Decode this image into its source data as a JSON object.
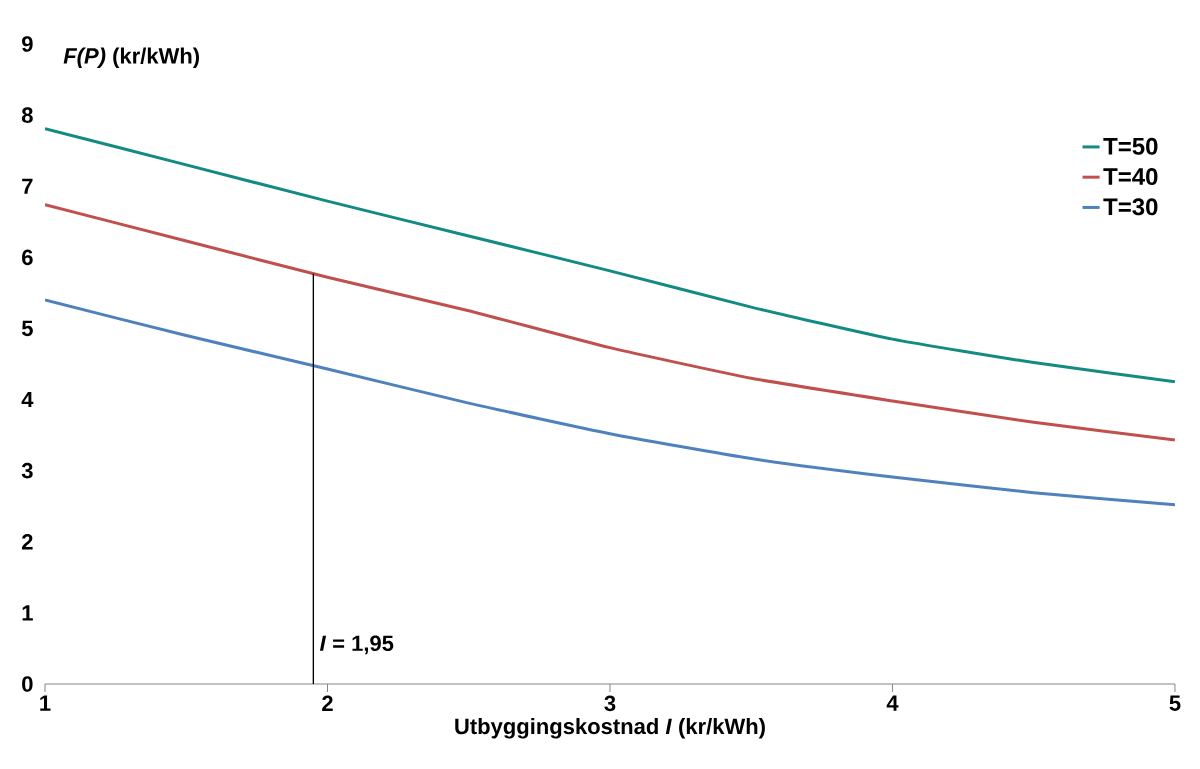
{
  "chart_data": {
    "type": "line",
    "xlabel": "Utbyggingskostnad *I*  (kr/kWh)",
    "ylabel": "*F(P)*  (kr/kWh)",
    "x": [
      1,
      1.5,
      2,
      2.5,
      3,
      3.5,
      4,
      4.5,
      5
    ],
    "series": [
      {
        "name": "T=50",
        "color": "#138b82",
        "values": [
          7.81,
          7.3,
          6.79,
          6.3,
          5.81,
          5.3,
          4.85,
          4.52,
          4.25
        ]
      },
      {
        "name": "T=40",
        "color": "#c0504d",
        "values": [
          6.74,
          6.23,
          5.72,
          5.25,
          4.73,
          4.3,
          3.98,
          3.68,
          3.43
        ]
      },
      {
        "name": "T=30",
        "color": "#4f81bd",
        "values": [
          5.4,
          4.9,
          4.43,
          3.95,
          3.52,
          3.17,
          2.91,
          2.69,
          2.52
        ]
      },
      {
        "type": "line",
        "color": "#000000",
        "x": [
          1.95,
          1.95
        ],
        "values": [
          0,
          5.77
        ]
      }
    ],
    "annotations": [
      {
        "text": "*I* = 1,95",
        "x": 1.95,
        "y": 0.55
      }
    ],
    "xlim": [
      1,
      5
    ],
    "xticks": [
      1,
      2,
      3,
      4,
      5
    ],
    "ylim": [
      0,
      9
    ],
    "yticks": [
      0,
      1,
      2,
      3,
      4,
      5,
      6,
      7,
      8,
      9
    ],
    "legend": "right",
    "grid": false,
    "marker": "none",
    "line_style": "solid"
  }
}
